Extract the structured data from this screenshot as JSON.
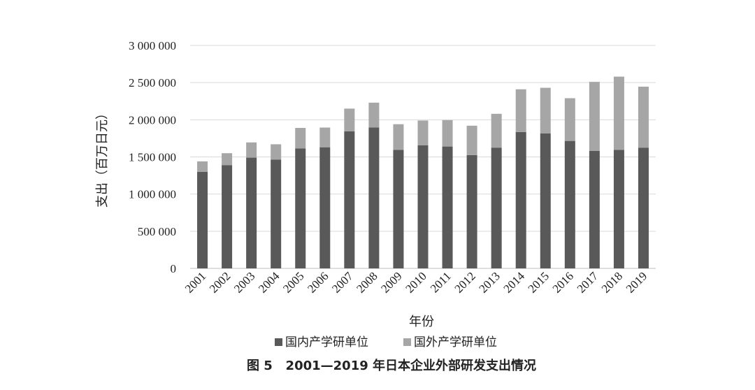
{
  "caption": "图 5   2001—2019 年日本企业外部研发支出情况",
  "chart_data": {
    "type": "bar",
    "stacked": true,
    "categories": [
      "2001",
      "2002",
      "2003",
      "2004",
      "2005",
      "2006",
      "2007",
      "2008",
      "2009",
      "2010",
      "2011",
      "2012",
      "2013",
      "2014",
      "2015",
      "2016",
      "2017",
      "2018",
      "2019"
    ],
    "series": [
      {
        "name": "国内产学研单位",
        "color": "#595959",
        "values": [
          1300000,
          1390000,
          1490000,
          1465000,
          1615000,
          1630000,
          1845000,
          1895000,
          1595000,
          1655000,
          1640000,
          1525000,
          1625000,
          1835000,
          1815000,
          1715000,
          1580000,
          1595000,
          1625000
        ]
      },
      {
        "name": "国外产学研单位",
        "color": "#a6a6a6",
        "values": [
          140000,
          160000,
          205000,
          205000,
          275000,
          265000,
          305000,
          335000,
          345000,
          335000,
          355000,
          395000,
          455000,
          575000,
          615000,
          575000,
          930000,
          985000,
          820000
        ]
      }
    ],
    "xlabel": "年份",
    "ylabel": "支出（百万日元）",
    "ylim": [
      0,
      3000000
    ],
    "yticks": [
      0,
      500000,
      1000000,
      1500000,
      2000000,
      2500000,
      3000000
    ],
    "ytick_labels": [
      "0",
      "500 000",
      "1 000 000",
      "1 500 000",
      "2 000 000",
      "2 500 000",
      "3 000 000"
    ],
    "grid": true,
    "legend_position": "bottom"
  }
}
